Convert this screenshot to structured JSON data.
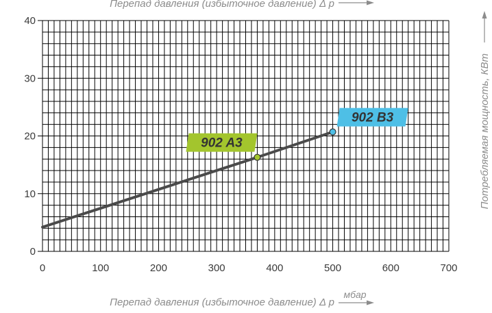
{
  "chart_data": {
    "type": "line",
    "x_axis": {
      "label": "Перепад давления (избыточное давление) Δ p",
      "unit": "мбар",
      "range": [
        0,
        700
      ],
      "ticks": [
        0,
        100,
        200,
        300,
        400,
        500,
        600,
        700
      ]
    },
    "y_axis": {
      "label": "Потребляемая мощность, КВт",
      "range": [
        0,
        40
      ],
      "ticks": [
        0,
        10,
        20,
        30,
        40
      ]
    },
    "grid": true,
    "top_caption": "Перепад давления (избыточное давление) Δ p",
    "line": {
      "x": [
        0,
        370,
        500
      ],
      "y": [
        4.2,
        16.3,
        20.7
      ],
      "color": "#4a4a4a"
    },
    "series": [
      {
        "name": "902 A3",
        "x": 370,
        "y": 16.3,
        "color": "#a3c52d"
      },
      {
        "name": "902 B3",
        "x": 500,
        "y": 20.7,
        "color": "#4ebfe6"
      }
    ]
  }
}
